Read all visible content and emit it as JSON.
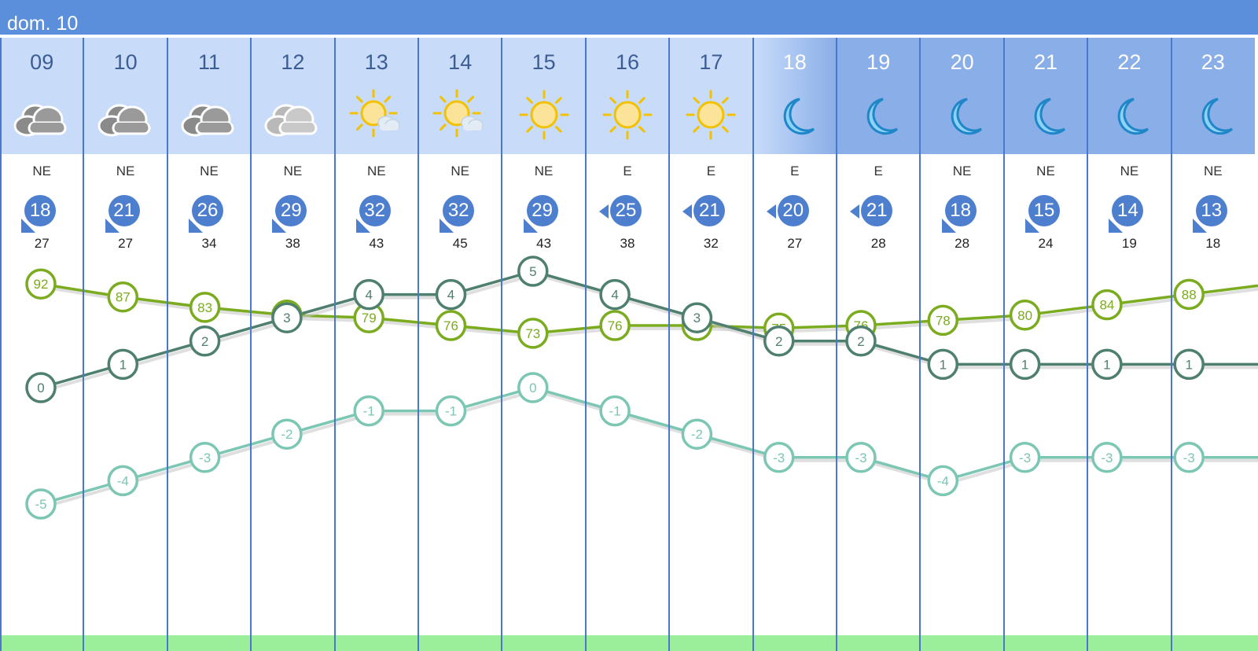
{
  "day_header": "dom. 10",
  "hours": [
    {
      "hour": "09",
      "icon": "cloudy-icon",
      "dir": "NE",
      "wind": "18",
      "gust": "27",
      "wind_from": "ne"
    },
    {
      "hour": "10",
      "icon": "cloudy-icon",
      "dir": "NE",
      "wind": "21",
      "gust": "27",
      "wind_from": "ne"
    },
    {
      "hour": "11",
      "icon": "cloudy-icon",
      "dir": "NE",
      "wind": "26",
      "gust": "34",
      "wind_from": "ne"
    },
    {
      "hour": "12",
      "icon": "light-cloudy-icon",
      "dir": "NE",
      "wind": "29",
      "gust": "38",
      "wind_from": "ne"
    },
    {
      "hour": "13",
      "icon": "sun-cloud-icon",
      "dir": "NE",
      "wind": "32",
      "gust": "43",
      "wind_from": "ne"
    },
    {
      "hour": "14",
      "icon": "sun-cloud-icon",
      "dir": "NE",
      "wind": "32",
      "gust": "45",
      "wind_from": "ne"
    },
    {
      "hour": "15",
      "icon": "sun-icon",
      "dir": "NE",
      "wind": "29",
      "gust": "43",
      "wind_from": "ne"
    },
    {
      "hour": "16",
      "icon": "sun-icon",
      "dir": "E",
      "wind": "25",
      "gust": "38",
      "wind_from": "e"
    },
    {
      "hour": "17",
      "icon": "sun-icon",
      "dir": "E",
      "wind": "21",
      "gust": "32",
      "wind_from": "e"
    },
    {
      "hour": "18",
      "icon": "moon-icon",
      "dir": "E",
      "wind": "20",
      "gust": "27",
      "wind_from": "e"
    },
    {
      "hour": "19",
      "icon": "moon-icon",
      "dir": "E",
      "wind": "21",
      "gust": "28",
      "wind_from": "e"
    },
    {
      "hour": "20",
      "icon": "moon-icon",
      "dir": "NE",
      "wind": "18",
      "gust": "28",
      "wind_from": "ne"
    },
    {
      "hour": "21",
      "icon": "moon-icon",
      "dir": "NE",
      "wind": "15",
      "gust": "24",
      "wind_from": "ne"
    },
    {
      "hour": "22",
      "icon": "moon-icon",
      "dir": "NE",
      "wind": "14",
      "gust": "19",
      "wind_from": "ne"
    },
    {
      "hour": "23",
      "icon": "moon-icon",
      "dir": "NE",
      "wind": "13",
      "gust": "18",
      "wind_from": "ne"
    }
  ],
  "chart_data": {
    "type": "line",
    "x": [
      "09",
      "10",
      "11",
      "12",
      "13",
      "14",
      "15",
      "16",
      "17",
      "18",
      "19",
      "20",
      "21",
      "22",
      "23"
    ],
    "series": [
      {
        "values": [
          92,
          87,
          83,
          80,
          79,
          76,
          73,
          76,
          76,
          75,
          76,
          78,
          80,
          84,
          88
        ],
        "color": "#7bab1e"
      },
      {
        "values": [
          0,
          1,
          2,
          3,
          4,
          4,
          5,
          4,
          3,
          2,
          2,
          1,
          1,
          1,
          1
        ],
        "color": "#4f7f6f"
      },
      {
        "values": [
          -5,
          -4,
          -3,
          -2,
          -1,
          -1,
          0,
          -1,
          -2,
          -3,
          -3,
          -4,
          -3,
          -3,
          -3
        ],
        "color": "#7cc6b4"
      }
    ]
  },
  "colors": {
    "header_bg": "#5b8fdb",
    "day_head_bg": "#c8dcfa",
    "night_head_bg": "#8aaee8",
    "wind_bubble": "#4e7fcf",
    "column_line": "#4a78cf",
    "bottom_bar": "#9bef9b"
  }
}
